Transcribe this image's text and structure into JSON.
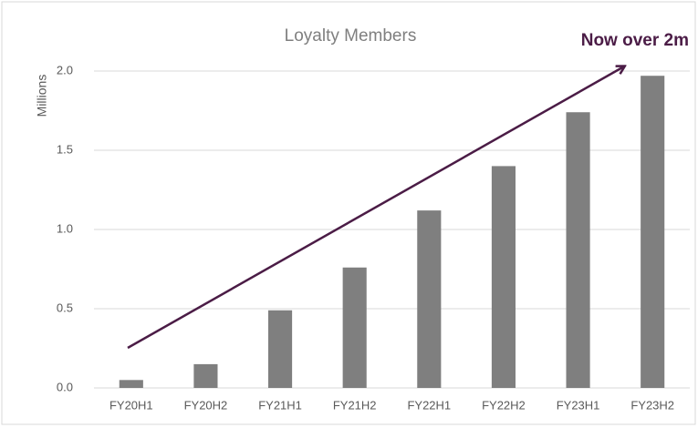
{
  "chart_data": {
    "type": "bar",
    "title": "Loyalty Members",
    "y_label": "Millions",
    "annotation": "Now over 2m",
    "categories": [
      "FY20H1",
      "FY20H2",
      "FY21H1",
      "FY21H2",
      "FY22H1",
      "FY22H2",
      "FY23H1",
      "FY23H2"
    ],
    "values": [
      0.05,
      0.15,
      0.49,
      0.76,
      1.12,
      1.4,
      1.74,
      1.97
    ],
    "color": "#7f7f7f",
    "ylim": [
      0,
      2
    ],
    "yticks": [
      {
        "value": 0,
        "label": "0.0"
      },
      0.5,
      {
        "value": 1,
        "label": "1.0"
      },
      1.5,
      {
        "value": 2,
        "label": "2.0"
      }
    ],
    "grid": true
  }
}
